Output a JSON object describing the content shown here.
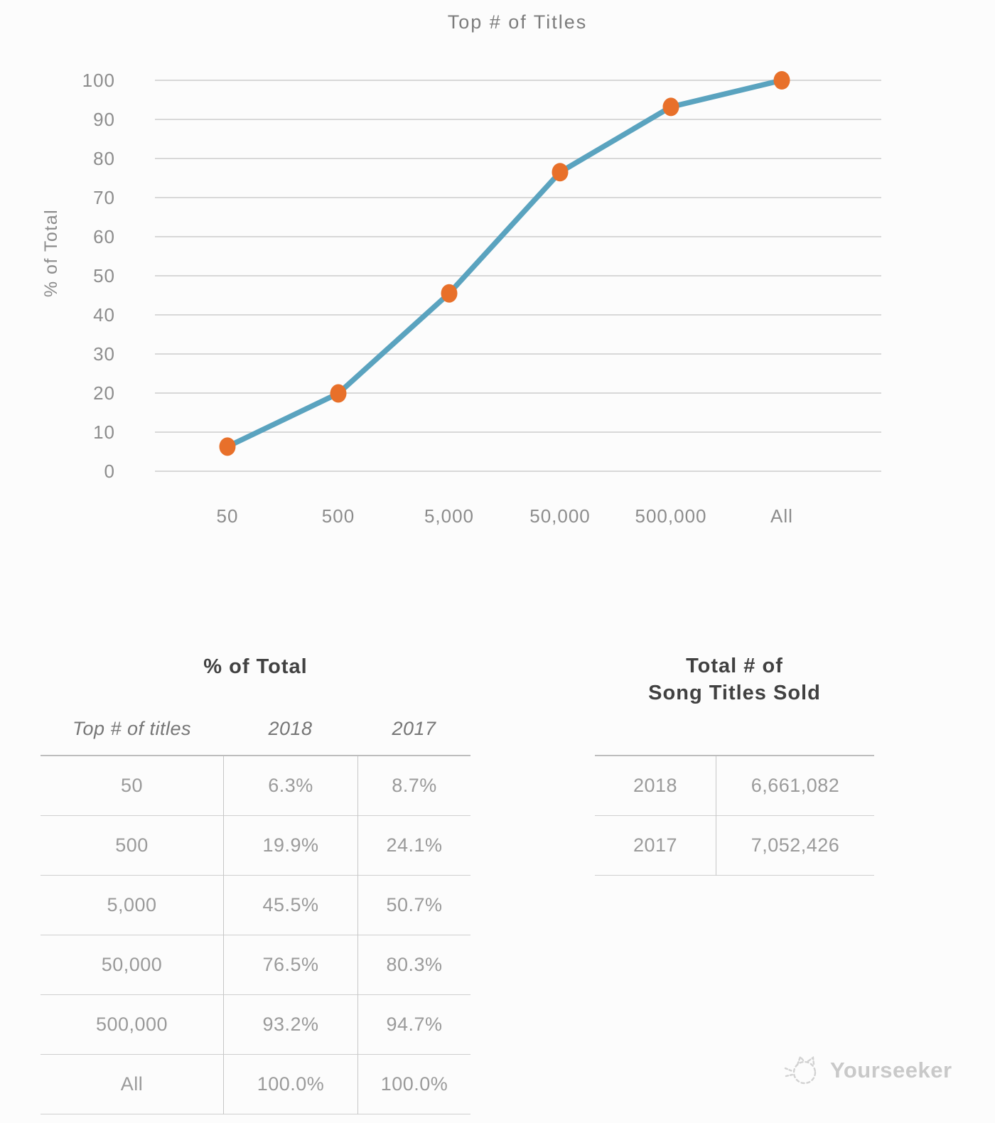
{
  "page": {
    "background": "#fcfcfc"
  },
  "chart": {
    "title": "Top # of Titles",
    "y_axis_title": "% of Total",
    "colors": {
      "line": "#5aa3bf",
      "marker": "#e8702a",
      "grid": "#cccccc"
    }
  },
  "chart_data": {
    "type": "line",
    "title": "Top # of Titles",
    "categories": [
      "50",
      "500",
      "5,000",
      "50,000",
      "500,000",
      "All"
    ],
    "series": [
      {
        "name": "2018",
        "values": [
          6.3,
          19.9,
          45.5,
          76.5,
          93.2,
          100.0
        ]
      }
    ],
    "xlabel": "Top # of titles",
    "ylabel": "% of Total",
    "ylim": [
      0,
      100
    ],
    "yticks": [
      0,
      10,
      20,
      30,
      40,
      50,
      60,
      70,
      80,
      90,
      100
    ],
    "grid": true,
    "legend": false
  },
  "pct_table": {
    "title": "% of Total",
    "columns": [
      "Top # of titles",
      "2018",
      "2017"
    ],
    "rows": [
      [
        "50",
        "6.3%",
        "8.7%"
      ],
      [
        "500",
        "19.9%",
        "24.1%"
      ],
      [
        "5,000",
        "45.5%",
        "50.7%"
      ],
      [
        "50,000",
        "76.5%",
        "80.3%"
      ],
      [
        "500,000",
        "93.2%",
        "94.7%"
      ],
      [
        "All",
        "100.0%",
        "100.0%"
      ]
    ]
  },
  "totals_table": {
    "title_line1": "Total # of",
    "title_line2": "Song Titles Sold",
    "rows": [
      [
        "2018",
        "6,661,082"
      ],
      [
        "2017",
        "7,052,426"
      ]
    ]
  },
  "watermark": {
    "label": "Yourseeker"
  }
}
